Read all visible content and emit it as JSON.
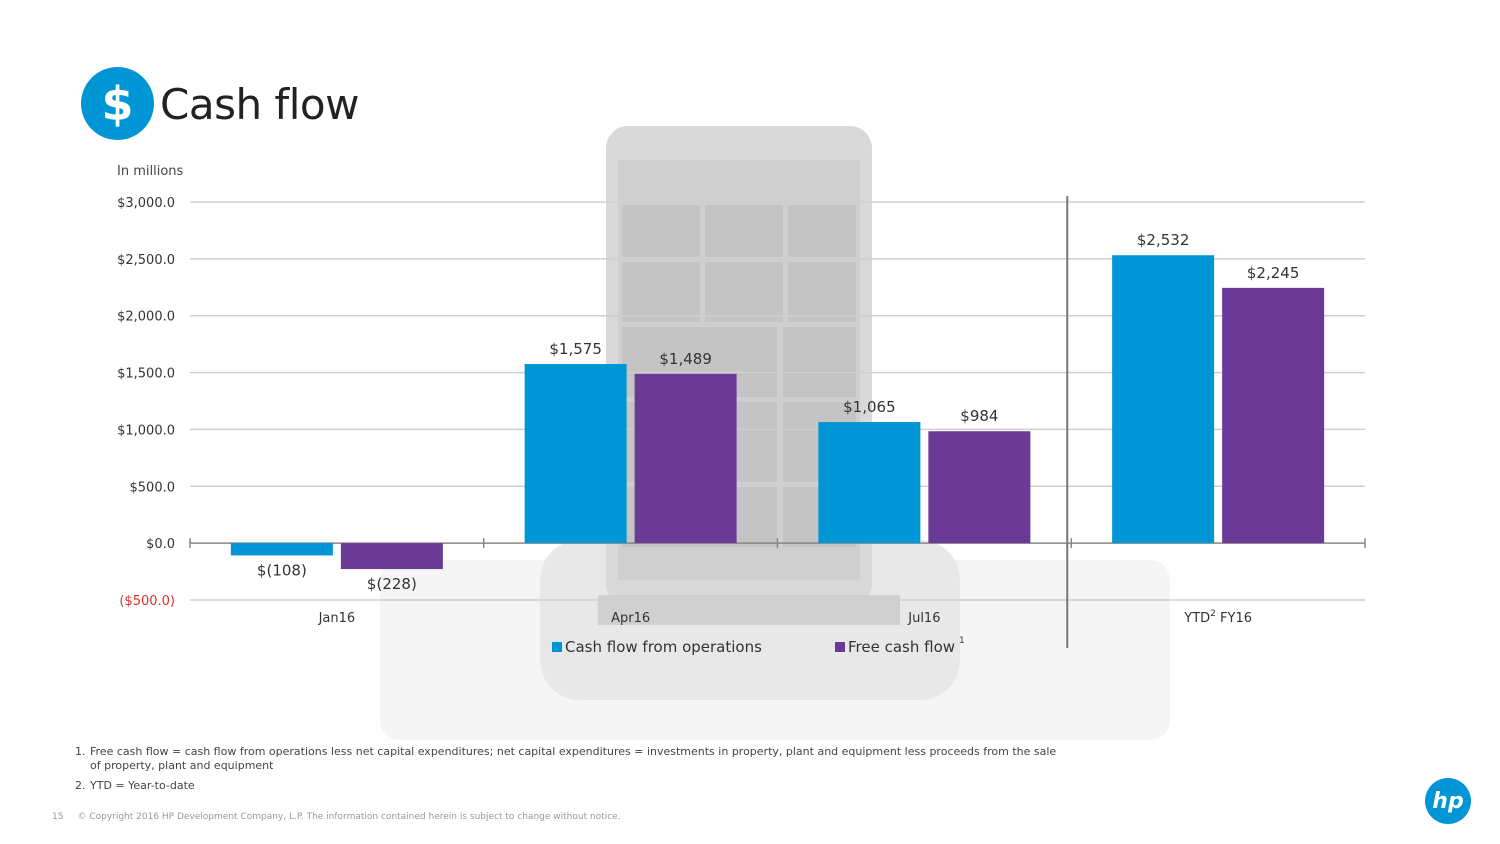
{
  "slide": {
    "title": "Cash flow",
    "title_icon": "dollar-icon",
    "title_icon_glyph": "$",
    "unit_label": "In millions",
    "page_number": "15",
    "copyright": "© Copyright 2016 HP Development Company, L.P. The information contained herein is subject to change without notice.",
    "logo_text": "hp",
    "footnotes": [
      {
        "num": "1.",
        "text": "Free cash flow = cash flow from operations less net capital expenditures; net capital expenditures = investments in property, plant and equipment less proceeds from the sale of property, plant and equipment"
      },
      {
        "num": "2.",
        "text": "YTD = Year-to-date"
      }
    ],
    "colors": {
      "accent": "#0096d6",
      "purple": "#6a3a96",
      "negative_tick": "#e0312b"
    }
  },
  "chart_data": {
    "type": "bar",
    "categories": [
      "Jan16",
      "Apr16",
      "Jul16",
      "YTD FY16"
    ],
    "category_superscripts": [
      "",
      "",
      "",
      "2"
    ],
    "series": [
      {
        "name": "Cash flow from operations",
        "values": [
          -108,
          1575,
          1065,
          2532
        ],
        "labels": [
          "$(108)",
          "$1,575",
          "$1,065",
          "$2,532"
        ],
        "color": "#0096d6"
      },
      {
        "name": "Free cash flow",
        "superscript": "1",
        "values": [
          -228,
          1489,
          984,
          2245
        ],
        "labels": [
          "$(228)",
          "$1,489",
          "$984",
          "$2,245"
        ],
        "color": "#6a3a96"
      }
    ],
    "ylim": [
      -500,
      3000
    ],
    "yticks": [
      3000,
      2500,
      2000,
      1500,
      1000,
      500,
      0,
      -500
    ],
    "ytick_labels": [
      "$3,000.0",
      "$2,500.0",
      "$2,000.0",
      "$1,500.0",
      "$1,000.0",
      "$500.0",
      "$0.0",
      "($500.0)"
    ],
    "grid": true,
    "legend_position": "bottom"
  }
}
